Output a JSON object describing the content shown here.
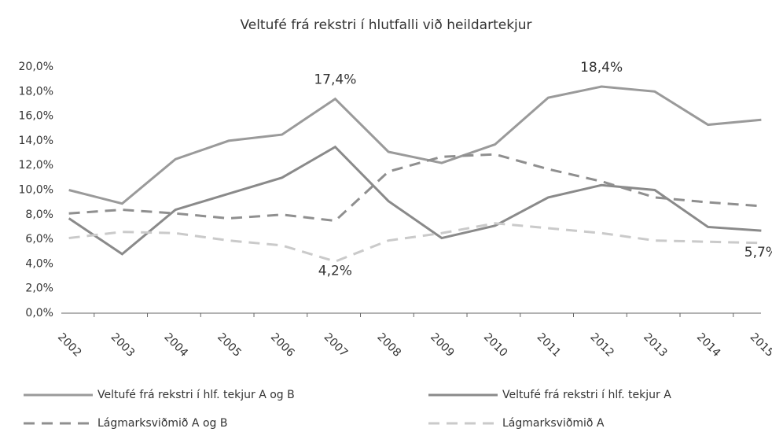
{
  "chart_data": {
    "type": "line",
    "title": "Veltufé frá rekstri í hlutfalli við heildartekjur",
    "categories": [
      "2002",
      "2003",
      "2004",
      "2005",
      "2006",
      "2007",
      "2008",
      "2009",
      "2010",
      "2011",
      "2012",
      "2013",
      "2014",
      "2015"
    ],
    "series": [
      {
        "name": "Veltufé frá rekstri í hlf. tekjur A og B",
        "color": "#9a9a9a",
        "dashed": false,
        "values": [
          10.0,
          8.9,
          12.5,
          14.0,
          14.5,
          17.4,
          13.1,
          12.2,
          13.7,
          17.5,
          18.4,
          18.0,
          15.3,
          15.7
        ],
        "value_labels": [
          null,
          null,
          null,
          null,
          null,
          "17,4%",
          null,
          null,
          null,
          null,
          "18,4%",
          null,
          null,
          null
        ]
      },
      {
        "name": "Veltufé frá rekstri í hlf. tekjur A",
        "color": "#8a8a8a",
        "dashed": false,
        "values": [
          7.7,
          4.8,
          8.4,
          9.7,
          11.0,
          13.5,
          9.1,
          6.1,
          7.1,
          9.4,
          10.4,
          10.0,
          7.0,
          6.7
        ]
      },
      {
        "name": "Lágmarksviðmið A og B",
        "color": "#8f8f8f",
        "dashed": true,
        "values": [
          8.1,
          8.4,
          8.1,
          7.7,
          8.0,
          7.5,
          11.5,
          12.7,
          12.9,
          11.7,
          10.7,
          9.4,
          9.0,
          8.7
        ]
      },
      {
        "name": "Lágmarksviðmið A",
        "color": "#cacaca",
        "dashed": true,
        "values": [
          6.1,
          6.6,
          6.5,
          5.9,
          5.5,
          4.2,
          5.9,
          6.5,
          7.3,
          6.9,
          6.5,
          5.9,
          5.8,
          5.7
        ],
        "value_labels": [
          null,
          null,
          null,
          null,
          null,
          "4,2%",
          null,
          null,
          null,
          null,
          null,
          null,
          null,
          "5,7%"
        ]
      }
    ],
    "ylim": [
      0,
      20
    ],
    "yticks": [
      {
        "value": 0,
        "label": "0,0%"
      },
      {
        "value": 2,
        "label": "2,0%"
      },
      {
        "value": 4,
        "label": "4,0%"
      },
      {
        "value": 6,
        "label": "6,0%"
      },
      {
        "value": 8,
        "label": "8,0%"
      },
      {
        "value": 10,
        "label": "10,0%"
      },
      {
        "value": 12,
        "label": "12,0%"
      },
      {
        "value": 14,
        "label": "14,0%"
      },
      {
        "value": 16,
        "label": "16,0%"
      },
      {
        "value": 18,
        "label": "18,0%"
      },
      {
        "value": 20,
        "label": "20,0%"
      }
    ],
    "grid": false
  }
}
